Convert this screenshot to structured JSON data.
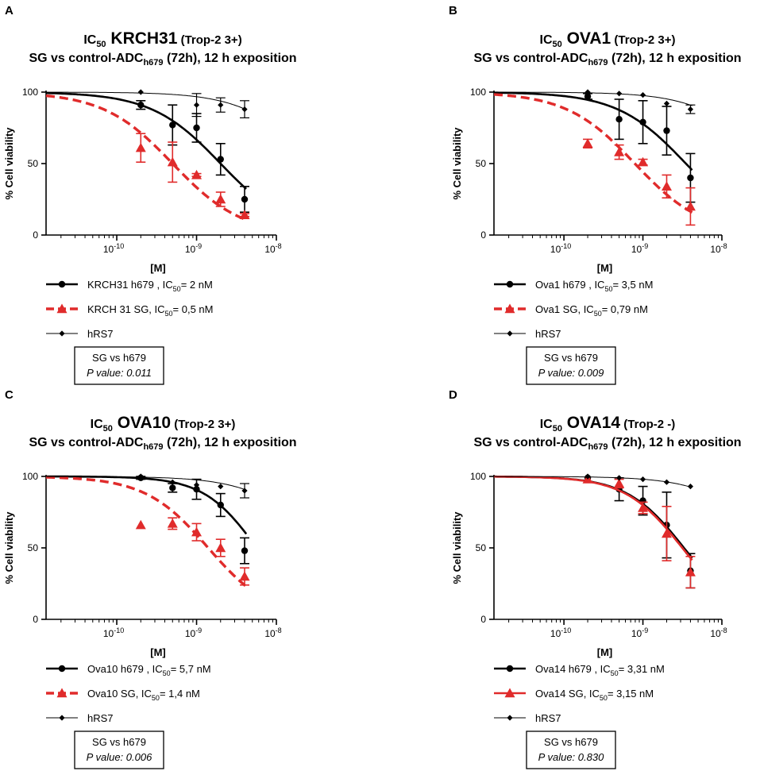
{
  "colors": {
    "black": "#000000",
    "red": "#e02b2b",
    "axis": "#000000"
  },
  "chart_data": [
    {
      "panel": "A",
      "type": "line",
      "title": {
        "prefix": "IC",
        "prefix_sub": "50",
        "name": "KRCH31",
        "suffix": "(Trop-2 3+)"
      },
      "subtitle": {
        "pre": "SG vs control-ADC",
        "sub": "h679",
        "post": "(72h), 12 h exposition"
      },
      "xlabel": "[M]",
      "ylabel": "% Cell viability",
      "x_scale": "log",
      "xlim": [
        1.3e-11,
        1e-08
      ],
      "ylim": [
        0,
        100
      ],
      "yticks": [
        0,
        50,
        100
      ],
      "xticks": [
        {
          "value": 1e-10,
          "base": "10",
          "exp": "-10"
        },
        {
          "value": 1e-09,
          "base": "10",
          "exp": "-9"
        },
        {
          "value": 1e-08,
          "base": "10",
          "exp": "-8"
        }
      ],
      "series": [
        {
          "name": "KRCH31 h679",
          "color": "#000000",
          "marker": "circle",
          "dashed": false,
          "legend": {
            "pre": "KRCH31 h679 , IC",
            "sub": "50",
            "post": "= 2 nM"
          },
          "fit": {
            "ic50": 2e-09,
            "hill": 1.0,
            "top": 100,
            "bottom": 0
          },
          "points": [
            {
              "x": 2e-10,
              "y": 91,
              "err": 3
            },
            {
              "x": 5e-10,
              "y": 77,
              "err": 14
            },
            {
              "x": 1e-09,
              "y": 75,
              "err": 10
            },
            {
              "x": 2e-09,
              "y": 53,
              "err": 11
            },
            {
              "x": 4e-09,
              "y": 25,
              "err": 9
            }
          ]
        },
        {
          "name": "KRCH 31 SG",
          "color": "#e02b2b",
          "marker": "triangle",
          "dashed": true,
          "legend": {
            "pre": "KRCH 31 SG, IC",
            "sub": "50",
            "post": "= 0,5 nM"
          },
          "fit": {
            "ic50": 5e-10,
            "hill": 1.0,
            "top": 100,
            "bottom": 0
          },
          "points": [
            {
              "x": 2e-10,
              "y": 61,
              "err": 10
            },
            {
              "x": 5e-10,
              "y": 51,
              "err": 14
            },
            {
              "x": 1e-09,
              "y": 42,
              "err": 1
            },
            {
              "x": 2e-09,
              "y": 25,
              "err": 5
            },
            {
              "x": 4e-09,
              "y": 14,
              "err": 1
            }
          ]
        },
        {
          "name": "hRS7",
          "color": "#000000",
          "marker": "diamond",
          "dashed": false,
          "legend": {
            "pre": "hRS7",
            "sub": "",
            "post": ""
          },
          "fit": {
            "ic50": 3e-08,
            "hill": 1.0,
            "top": 100,
            "bottom": 0
          },
          "points": [
            {
              "x": 2e-10,
              "y": 100,
              "err": 0
            },
            {
              "x": 1e-09,
              "y": 91,
              "err": 8
            },
            {
              "x": 2e-09,
              "y": 91,
              "err": 5
            },
            {
              "x": 4e-09,
              "y": 88,
              "err": 6
            }
          ]
        }
      ],
      "stat_box": {
        "line1": "SG vs h679",
        "line2": "P value: 0.011"
      }
    },
    {
      "panel": "B",
      "type": "line",
      "title": {
        "prefix": "IC",
        "prefix_sub": "50",
        "name": "OVA1",
        "suffix": "(Trop-2 3+)"
      },
      "subtitle": {
        "pre": "SG vs control-ADC",
        "sub": "h679",
        "post": "(72h), 12 h exposition"
      },
      "xlabel": "[M]",
      "ylabel": "% Cell viability",
      "x_scale": "log",
      "xlim": [
        1.3e-11,
        1e-08
      ],
      "ylim": [
        0,
        100
      ],
      "yticks": [
        0,
        50,
        100
      ],
      "xticks": [
        {
          "value": 1e-10,
          "base": "10",
          "exp": "-10"
        },
        {
          "value": 1e-09,
          "base": "10",
          "exp": "-9"
        },
        {
          "value": 1e-08,
          "base": "10",
          "exp": "-8"
        }
      ],
      "series": [
        {
          "name": "Ova1 h679",
          "color": "#000000",
          "marker": "circle",
          "dashed": false,
          "legend": {
            "pre": "Ova1 h679 , IC",
            "sub": "50",
            "post": "= 3,5 nM"
          },
          "fit": {
            "ic50": 3.5e-09,
            "hill": 1.0,
            "top": 100,
            "bottom": 0
          },
          "points": [
            {
              "x": 2e-10,
              "y": 97,
              "err": 2
            },
            {
              "x": 5e-10,
              "y": 81,
              "err": 14
            },
            {
              "x": 1e-09,
              "y": 79,
              "err": 15
            },
            {
              "x": 2e-09,
              "y": 73,
              "err": 17
            },
            {
              "x": 4e-09,
              "y": 40,
              "err": 17
            }
          ]
        },
        {
          "name": "Ova1 SG",
          "color": "#e02b2b",
          "marker": "triangle",
          "dashed": true,
          "legend": {
            "pre": "Ova1 SG, IC",
            "sub": "50",
            "post": "= 0,79 nM"
          },
          "fit": {
            "ic50": 7.9e-10,
            "hill": 1.0,
            "top": 100,
            "bottom": 0
          },
          "points": [
            {
              "x": 2e-10,
              "y": 64,
              "err": 3
            },
            {
              "x": 5e-10,
              "y": 58,
              "err": 5
            },
            {
              "x": 1e-09,
              "y": 51,
              "err": 2
            },
            {
              "x": 2e-09,
              "y": 34,
              "err": 8
            },
            {
              "x": 4e-09,
              "y": 20,
              "err": 13
            }
          ]
        },
        {
          "name": "hRS7",
          "color": "#000000",
          "marker": "diamond",
          "dashed": false,
          "legend": {
            "pre": "hRS7",
            "sub": "",
            "post": ""
          },
          "fit": {
            "ic50": 4e-08,
            "hill": 1.0,
            "top": 100,
            "bottom": 0
          },
          "points": [
            {
              "x": 2e-10,
              "y": 100,
              "err": 0
            },
            {
              "x": 5e-10,
              "y": 99,
              "err": 0
            },
            {
              "x": 1e-09,
              "y": 98,
              "err": 0
            },
            {
              "x": 2e-09,
              "y": 92,
              "err": 0
            },
            {
              "x": 4e-09,
              "y": 88,
              "err": 3
            }
          ]
        }
      ],
      "stat_box": {
        "line1": "SG vs h679",
        "line2": "P value: 0.009"
      }
    },
    {
      "panel": "C",
      "type": "line",
      "title": {
        "prefix": "IC",
        "prefix_sub": "50",
        "name": "OVA10",
        "suffix": "(Trop-2 3+)"
      },
      "subtitle": {
        "pre": "SG vs control-ADC",
        "sub": "h679",
        "post": "(72h), 12 h exposition"
      },
      "xlabel": "[M]",
      "ylabel": "% Cell viability",
      "x_scale": "log",
      "xlim": [
        1.3e-11,
        1e-08
      ],
      "ylim": [
        0,
        100
      ],
      "yticks": [
        0,
        50,
        100
      ],
      "xticks": [
        {
          "value": 1e-10,
          "base": "10",
          "exp": "-10"
        },
        {
          "value": 1e-09,
          "base": "10",
          "exp": "-9"
        },
        {
          "value": 1e-08,
          "base": "10",
          "exp": "-8"
        }
      ],
      "series": [
        {
          "name": "Ova10 h679",
          "color": "#000000",
          "marker": "circle",
          "dashed": false,
          "legend": {
            "pre": "Ova10 h679 , IC",
            "sub": "50",
            "post": "= 5,7 nM"
          },
          "fit": {
            "ic50": 5.7e-09,
            "hill": 1.3,
            "top": 100,
            "bottom": 0
          },
          "points": [
            {
              "x": 2e-10,
              "y": 99,
              "err": 1
            },
            {
              "x": 5e-10,
              "y": 92,
              "err": 3
            },
            {
              "x": 1e-09,
              "y": 91,
              "err": 7
            },
            {
              "x": 2e-09,
              "y": 80,
              "err": 8
            },
            {
              "x": 4e-09,
              "y": 48,
              "err": 9
            }
          ]
        },
        {
          "name": "Ova10 SG",
          "color": "#e02b2b",
          "marker": "triangle",
          "dashed": true,
          "legend": {
            "pre": "Ova10 SG, IC",
            "sub": "50",
            "post": "= 1,4 nM"
          },
          "fit": {
            "ic50": 1.4e-09,
            "hill": 1.1,
            "top": 100,
            "bottom": 0
          },
          "points": [
            {
              "x": 2e-10,
              "y": 66,
              "err": 0
            },
            {
              "x": 5e-10,
              "y": 67,
              "err": 4
            },
            {
              "x": 1e-09,
              "y": 61,
              "err": 6
            },
            {
              "x": 2e-09,
              "y": 50,
              "err": 6
            },
            {
              "x": 4e-09,
              "y": 30,
              "err": 6
            }
          ]
        },
        {
          "name": "hRS7",
          "color": "#000000",
          "marker": "diamond",
          "dashed": false,
          "legend": {
            "pre": "hRS7",
            "sub": "",
            "post": ""
          },
          "fit": {
            "ic50": 4e-08,
            "hill": 1.0,
            "top": 100,
            "bottom": 0
          },
          "points": [
            {
              "x": 2e-10,
              "y": 100,
              "err": 0
            },
            {
              "x": 5e-10,
              "y": 96,
              "err": 0
            },
            {
              "x": 1e-09,
              "y": 94,
              "err": 0
            },
            {
              "x": 2e-09,
              "y": 93,
              "err": 0
            },
            {
              "x": 4e-09,
              "y": 90,
              "err": 5
            }
          ]
        }
      ],
      "stat_box": {
        "line1": "SG vs h679",
        "line2": "P value: 0.006"
      }
    },
    {
      "panel": "D",
      "type": "line",
      "title": {
        "prefix": "IC",
        "prefix_sub": "50",
        "name": "OVA14",
        "suffix": "(Trop-2 -)"
      },
      "subtitle": {
        "pre": "SG vs control-ADC",
        "sub": "h679",
        "post": "(72h), 12 h exposition"
      },
      "xlabel": "[M]",
      "ylabel": "% Cell viability",
      "x_scale": "log",
      "xlim": [
        1.3e-11,
        1e-08
      ],
      "ylim": [
        0,
        100
      ],
      "yticks": [
        0,
        50,
        100
      ],
      "xticks": [
        {
          "value": 1e-10,
          "base": "10",
          "exp": "-10"
        },
        {
          "value": 1e-09,
          "base": "10",
          "exp": "-9"
        },
        {
          "value": 1e-08,
          "base": "10",
          "exp": "-8"
        }
      ],
      "series": [
        {
          "name": "Ova14 h679",
          "color": "#000000",
          "marker": "circle",
          "dashed": false,
          "legend": {
            "pre": "Ova14 h679 , IC",
            "sub": "50",
            "post": "= 3,31 nM"
          },
          "fit": {
            "ic50": 3.31e-09,
            "hill": 1.2,
            "top": 100,
            "bottom": 0
          },
          "points": [
            {
              "x": 2e-10,
              "y": 99,
              "err": 0
            },
            {
              "x": 5e-10,
              "y": 91,
              "err": 8
            },
            {
              "x": 1e-09,
              "y": 83,
              "err": 10
            },
            {
              "x": 2e-09,
              "y": 66,
              "err": 23
            },
            {
              "x": 4e-09,
              "y": 34,
              "err": 12
            }
          ]
        },
        {
          "name": "Ova14 SG",
          "color": "#e02b2b",
          "marker": "triangle",
          "dashed": false,
          "legend": {
            "pre": "Ova14 SG, IC",
            "sub": "50",
            "post": "= 3,15 nM"
          },
          "fit": {
            "ic50": 3.15e-09,
            "hill": 1.2,
            "top": 100,
            "bottom": 0
          },
          "points": [
            {
              "x": 2e-10,
              "y": 98,
              "err": 0
            },
            {
              "x": 5e-10,
              "y": 95,
              "err": 3
            },
            {
              "x": 1e-09,
              "y": 78,
              "err": 4
            },
            {
              "x": 2e-09,
              "y": 60,
              "err": 19
            },
            {
              "x": 4e-09,
              "y": 33,
              "err": 11
            }
          ]
        },
        {
          "name": "hRS7",
          "color": "#000000",
          "marker": "diamond",
          "dashed": false,
          "legend": {
            "pre": "hRS7",
            "sub": "",
            "post": ""
          },
          "fit": {
            "ic50": 5e-08,
            "hill": 1.0,
            "top": 100,
            "bottom": 0
          },
          "points": [
            {
              "x": 2e-10,
              "y": 100,
              "err": 0
            },
            {
              "x": 5e-10,
              "y": 99,
              "err": 0
            },
            {
              "x": 1e-09,
              "y": 98,
              "err": 0
            },
            {
              "x": 2e-09,
              "y": 96,
              "err": 0
            },
            {
              "x": 4e-09,
              "y": 93,
              "err": 0
            }
          ]
        }
      ],
      "stat_box": {
        "line1": "SG vs h679",
        "line2": "P value: 0.830"
      }
    }
  ]
}
